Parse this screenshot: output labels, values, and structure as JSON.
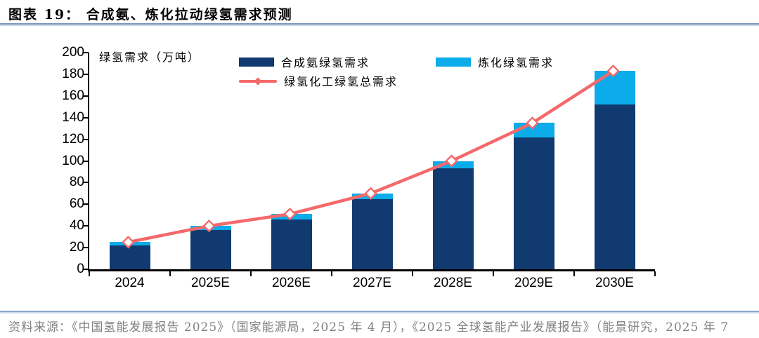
{
  "header": {
    "title": "图表 19：  合成氨、炼化拉动绿氢需求预测"
  },
  "chart_data": {
    "type": "bar",
    "subtype": "stacked-bars-with-total-line",
    "title": "合成氨、炼化拉动绿氢需求预测",
    "unit_label": "绿氢需求（万吨）",
    "categories": [
      "2024",
      "2025E",
      "2026E",
      "2027E",
      "2028E",
      "2029E",
      "2030E"
    ],
    "series": [
      {
        "name": "合成氨绿氢需求",
        "type": "bar",
        "color": "#113A70",
        "values": [
          22,
          36,
          46,
          65,
          93,
          122,
          152
        ]
      },
      {
        "name": "炼化绿氢需求",
        "type": "bar",
        "color": "#0BACE9",
        "values": [
          3,
          4,
          5,
          5,
          7,
          13,
          31
        ]
      },
      {
        "name": "绿氢化工绿氢总需求",
        "type": "line",
        "color": "#F4696B",
        "marker": "hollow-diamond",
        "values": [
          25,
          40,
          51,
          70,
          100,
          135,
          183
        ]
      }
    ],
    "stacked": true,
    "xlabel": "",
    "ylabel": "绿氢需求（万吨）",
    "ylim": [
      0,
      200
    ],
    "ytick_step": 20,
    "grid": false,
    "legend_position": "top"
  },
  "footer": {
    "source": "资料来源：《中国氢能发展报告 2025》（国家能源局，2025 年 4 月），《2025 全球氢能产业发展报告》（能景研究，2025 年 7"
  },
  "colors": {
    "ammonia_bar": "#113A70",
    "refining_bar": "#0BACE9",
    "total_line": "#F4696B",
    "axis": "#000000",
    "source_text": "#828282",
    "rule_dark": "#7E99B8",
    "rule_light": "#C9D9EA"
  }
}
